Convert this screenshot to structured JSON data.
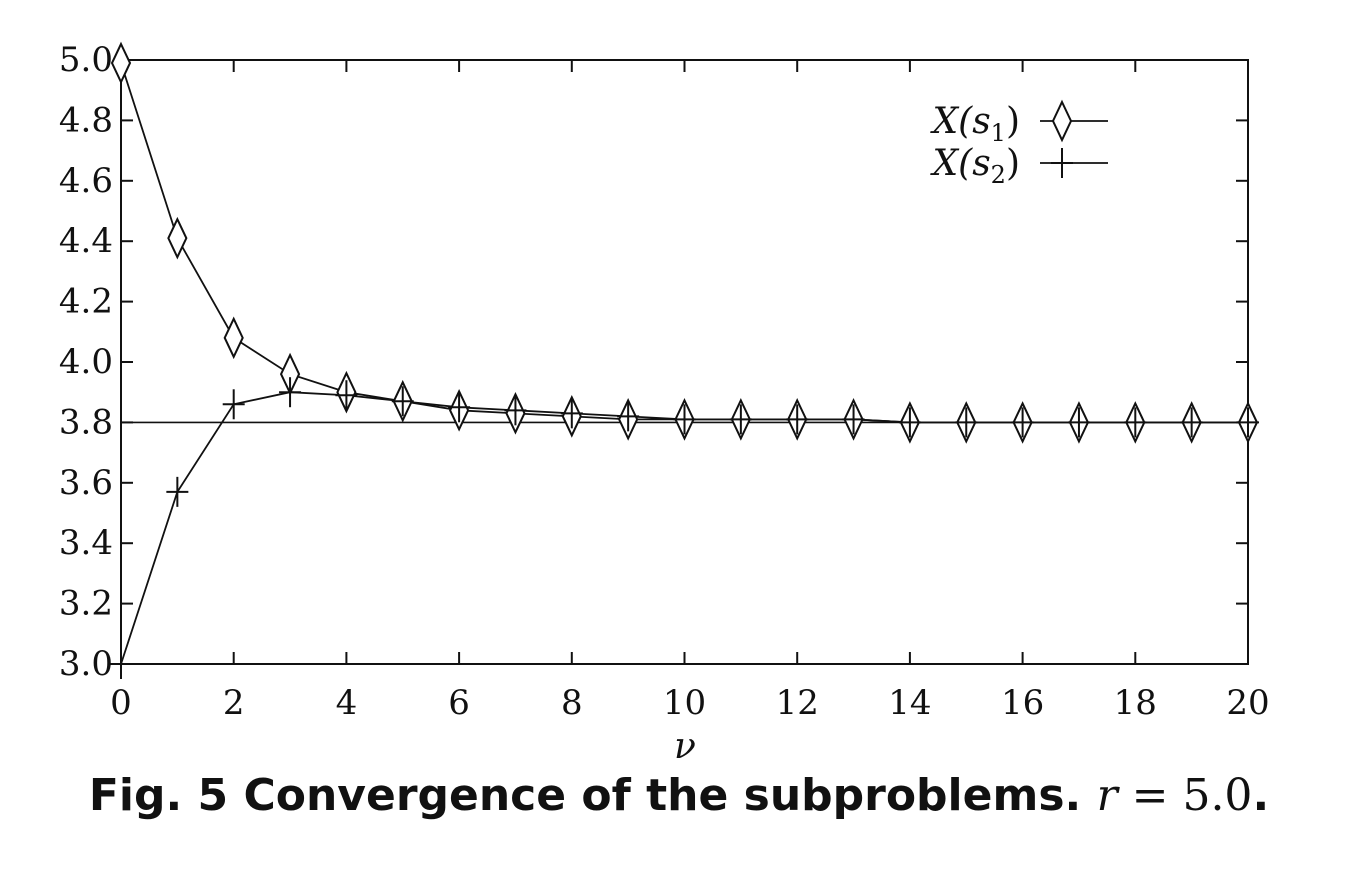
{
  "chart_data": {
    "type": "line",
    "xlabel": "ν",
    "ylabel": "",
    "xlim": [
      0,
      20
    ],
    "ylim": [
      3.0,
      5.0
    ],
    "xticks": [
      "0",
      "2",
      "4",
      "6",
      "8",
      "10",
      "12",
      "14",
      "16",
      "18",
      "20"
    ],
    "yticks": [
      "3.0",
      "3.2",
      "3.4",
      "3.6",
      "3.8",
      "4.0",
      "4.2",
      "4.4",
      "4.6",
      "4.8",
      "5.0"
    ],
    "grid": false,
    "legend_position": "top-right",
    "reference_line": 3.8,
    "x": [
      0,
      1,
      2,
      3,
      4,
      5,
      6,
      7,
      8,
      9,
      10,
      11,
      12,
      13,
      14,
      15,
      16,
      17,
      18,
      19,
      20
    ],
    "series": [
      {
        "name": "X(s1)",
        "legend_base": "X(s",
        "legend_sub": "1",
        "legend_close": ")",
        "marker": "diamond",
        "values": [
          4.99,
          4.41,
          4.08,
          3.96,
          3.9,
          3.87,
          3.84,
          3.83,
          3.82,
          3.81,
          3.81,
          3.81,
          3.81,
          3.81,
          3.8,
          3.8,
          3.8,
          3.8,
          3.8,
          3.8,
          3.8
        ]
      },
      {
        "name": "X(s2)",
        "legend_base": "X(s",
        "legend_sub": "2",
        "legend_close": ")",
        "marker": "plus",
        "values": [
          3.0,
          3.57,
          3.86,
          3.9,
          3.89,
          3.87,
          3.85,
          3.84,
          3.83,
          3.82,
          3.81,
          3.81,
          3.81,
          3.81,
          3.8,
          3.8,
          3.8,
          3.8,
          3.8,
          3.8,
          3.8
        ]
      }
    ]
  },
  "caption": {
    "prefix": "Fig. 5  Convergence of the subproblems.",
    "var": "r",
    "eq": " = 5.0",
    "period": "."
  }
}
